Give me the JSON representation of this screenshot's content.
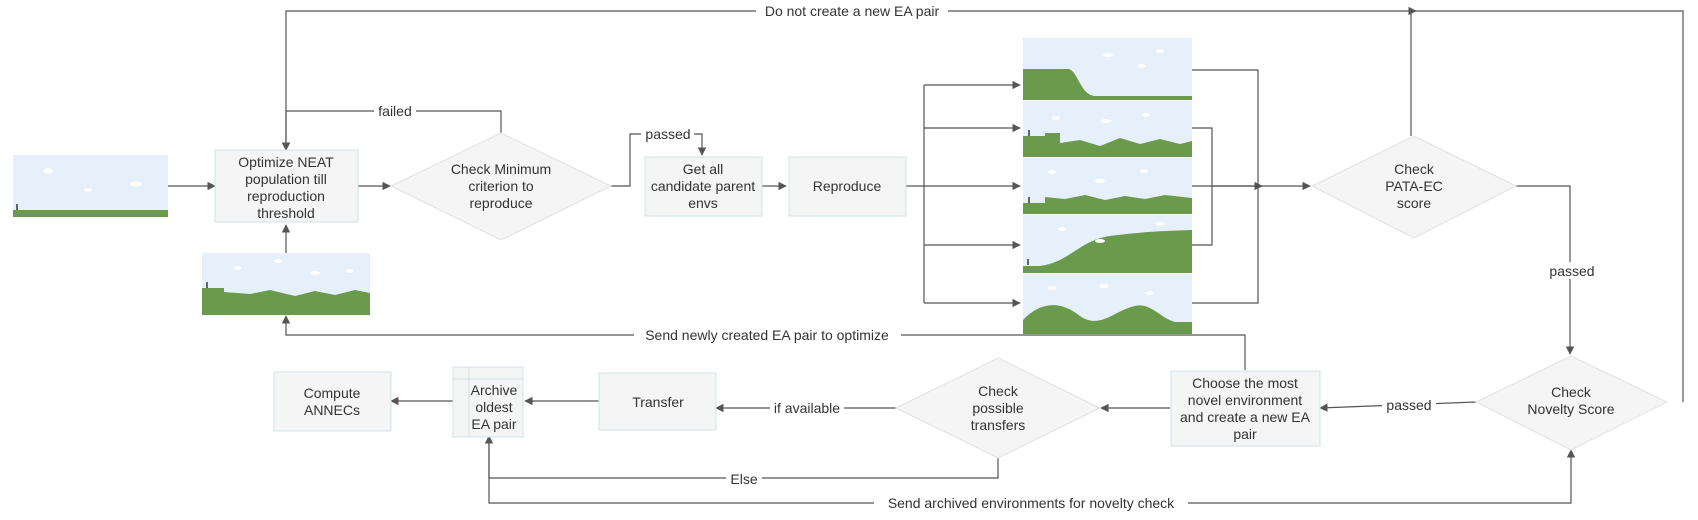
{
  "nodes": {
    "optimize": [
      "Optimize NEAT",
      "population till",
      "reproduction",
      "threshold"
    ],
    "check_min": [
      "Check Minimum",
      "criterion to",
      "reproduce"
    ],
    "get_parents": [
      "Get all",
      "candidate parent",
      "envs"
    ],
    "reproduce": [
      "Reproduce"
    ],
    "check_pata": [
      "Check",
      "PATA-EC",
      "score"
    ],
    "check_novelty": [
      "Check",
      "Novelty Score"
    ],
    "choose_novel": [
      "Choose the most",
      "novel environment",
      "and create a new EA",
      "pair"
    ],
    "check_transfers": [
      "Check",
      "possible",
      "transfers"
    ],
    "transfer": [
      "Transfer"
    ],
    "archive": [
      "Archive",
      "oldest",
      "EA pair"
    ],
    "compute": [
      "Compute",
      "ANNECs"
    ]
  },
  "edge_labels": {
    "do_not_create": "Do not create a new EA pair",
    "failed": "failed",
    "passed_min": "passed",
    "passed_pata": "passed",
    "passed_novelty": "passed",
    "send_new": "Send newly created EA pair to optimize",
    "if_available": "if available",
    "else": "Else",
    "send_archived": "Send archived environments for novelty check"
  },
  "colors": {
    "node_fill": "#f5f5f5",
    "node_border": "#cfe3ec",
    "edge": "#555555",
    "sky": "#e6f0fb",
    "ground": "#6a9a4c"
  }
}
